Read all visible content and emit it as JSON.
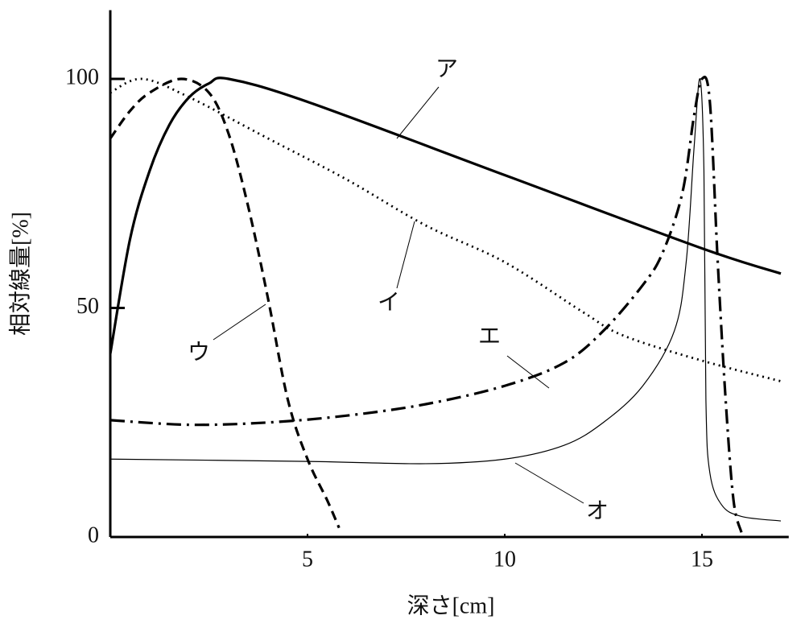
{
  "chart_data": {
    "type": "line",
    "xlabel": "深さ[cm]",
    "ylabel": "相対線量[%]",
    "xlim": [
      0,
      17.2
    ],
    "ylim": [
      0,
      115
    ],
    "xticks": [
      5,
      10,
      15
    ],
    "yticks": [
      0,
      50,
      100
    ],
    "grid": false,
    "series": [
      {
        "name": "ア",
        "color": "#000000",
        "style": "solid",
        "x": [
          0,
          0.5,
          1,
          1.5,
          2,
          2.5,
          3,
          5,
          10,
          15,
          17
        ],
        "values": [
          40,
          65,
          80,
          90,
          96,
          99,
          100,
          95,
          79,
          63,
          57.5
        ]
      },
      {
        "name": "イ",
        "color": "#000000",
        "style": "dotted",
        "x": [
          0,
          0.8,
          2,
          4,
          6,
          8,
          10,
          12,
          13,
          15,
          17
        ],
        "values": [
          97,
          100,
          96,
          87,
          78,
          68,
          60,
          49,
          44,
          38.5,
          34
        ]
      },
      {
        "name": "ウ",
        "color": "#000000",
        "style": "dashed",
        "x": [
          0,
          0.5,
          1,
          1.8,
          2.5,
          3,
          3.5,
          4,
          4.5,
          5,
          5.5,
          5.8
        ],
        "values": [
          87,
          93,
          97,
          100,
          97,
          88,
          72,
          52,
          30,
          17,
          8,
          2
        ]
      },
      {
        "name": "エ",
        "color": "#000000",
        "style": "dashdot",
        "x": [
          0,
          2,
          4,
          6,
          8,
          10,
          11.5,
          12.5,
          13.5,
          14,
          14.5,
          14.8,
          15,
          15.2,
          15.4,
          15.6,
          15.8,
          16
        ],
        "values": [
          25.5,
          24.5,
          25,
          26.5,
          29,
          33,
          38,
          45,
          55,
          62,
          75,
          92,
          100,
          95,
          60,
          30,
          8,
          1
        ]
      },
      {
        "name": "オ",
        "color": "#000000",
        "style": "thin",
        "x": [
          0,
          5,
          8,
          10,
          11.5,
          12.5,
          13.5,
          14.3,
          14.6,
          14.8,
          14.95,
          15.05,
          15.1,
          15.2,
          15.5,
          16,
          17
        ],
        "values": [
          17,
          16.5,
          16,
          17,
          20,
          25,
          33,
          45,
          60,
          85,
          100,
          80,
          30,
          14,
          7,
          4.5,
          3.5
        ]
      }
    ]
  }
}
